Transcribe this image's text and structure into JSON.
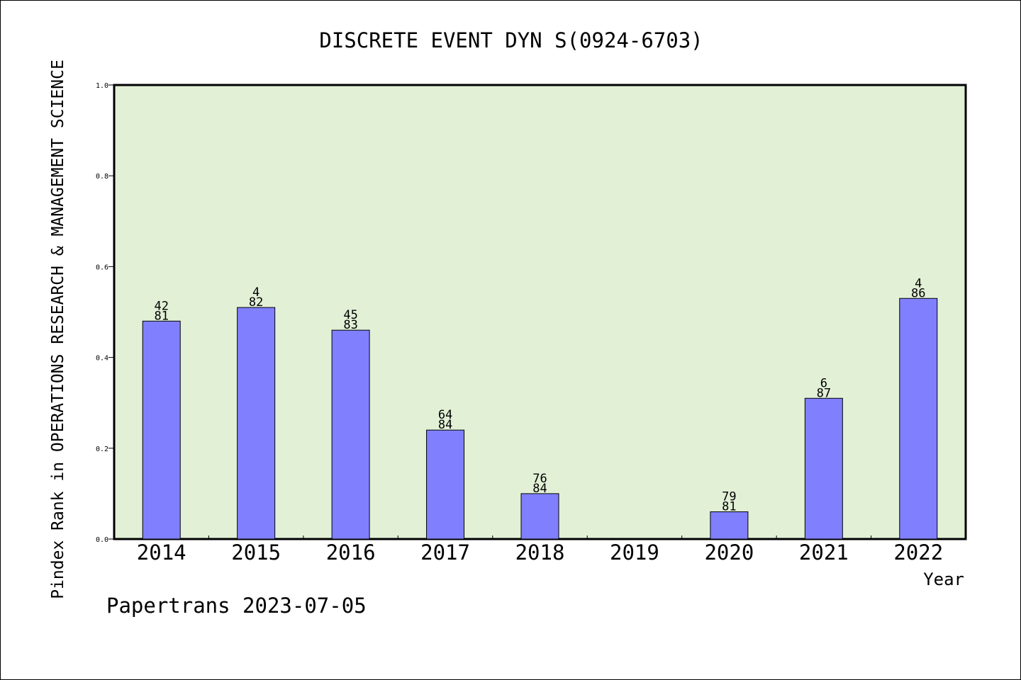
{
  "chart_data": {
    "type": "bar",
    "title": "DISCRETE EVENT DYN S(0924-6703)",
    "xlabel": "Year",
    "ylabel": "Pindex Rank in OPERATIONS RESEARCH & MANAGEMENT SCIENCE",
    "ylim": [
      0,
      1.0
    ],
    "yticks": [
      "0.0",
      "0.2",
      "0.4",
      "0.6",
      "0.8",
      "1.0"
    ],
    "ytick_values": [
      0,
      0.2,
      0.4,
      0.6,
      0.8,
      1.0
    ],
    "categories": [
      "2014",
      "2015",
      "2016",
      "2017",
      "2018",
      "2019",
      "2020",
      "2021",
      "2022"
    ],
    "values": [
      0.48,
      0.51,
      0.46,
      0.24,
      0.1,
      null,
      0.06,
      0.31,
      0.53
    ],
    "labels_top": [
      "42",
      "4",
      "45",
      "64",
      "76",
      "",
      "79",
      "6",
      "4"
    ],
    "labels_bottom": [
      "81",
      "82",
      "83",
      "84",
      "84",
      "",
      "81",
      "87",
      "86"
    ],
    "grid": false,
    "colors": {
      "plot_background": "#e2f0d6",
      "bar_fill": "#8080ff",
      "bar_stroke": "#000000"
    }
  },
  "footer": {
    "text": "Papertrans 2023-07-05"
  }
}
